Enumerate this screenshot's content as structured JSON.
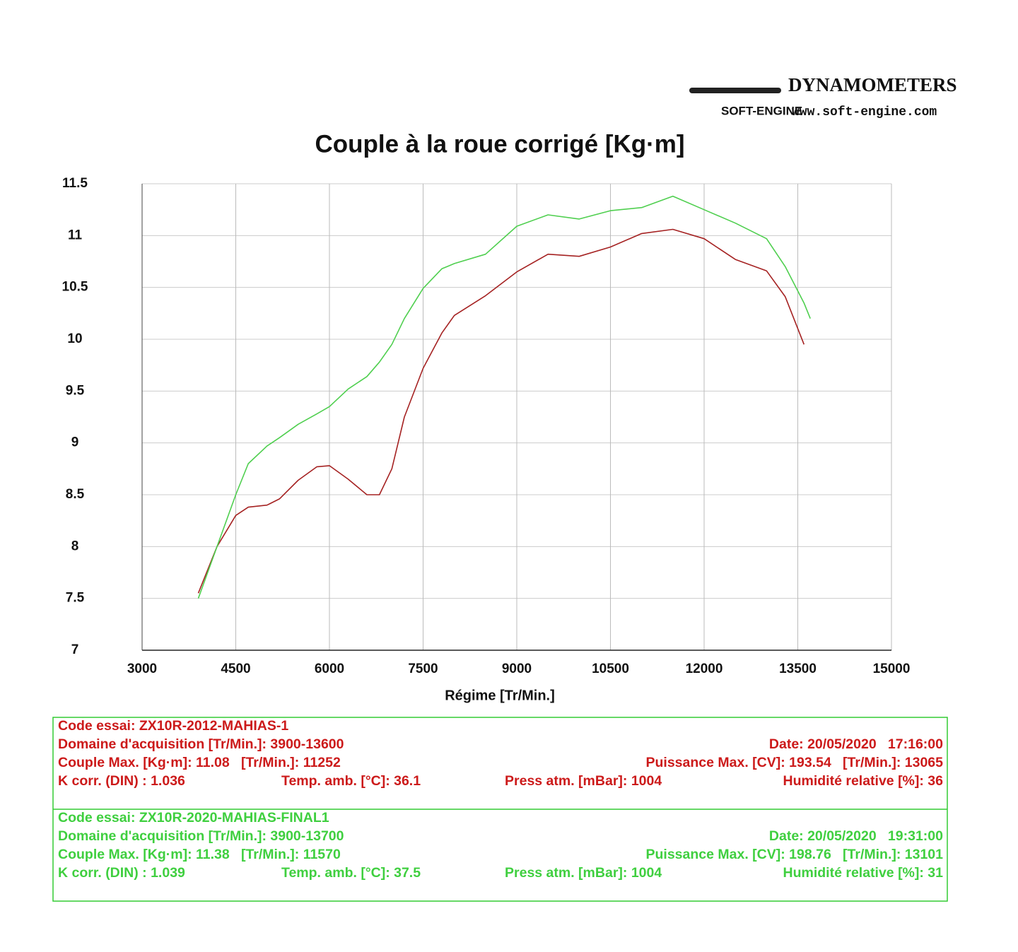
{
  "header": {
    "brand": "DYNAMOMETERS",
    "logo": "SOFT-ENGINE",
    "url": "www.soft-engine.com"
  },
  "chart_data": {
    "type": "line",
    "title": "Couple à la roue corrigé [Kg·m]",
    "x_label": "Régime [Tr/Min.]",
    "x": [
      3900,
      4200,
      4500,
      4700,
      5000,
      5200,
      5500,
      5800,
      6000,
      6300,
      6600,
      6800,
      7000,
      7200,
      7500,
      7800,
      8000,
      8500,
      9000,
      9500,
      10000,
      10500,
      11000,
      11500,
      12000,
      12500,
      13000,
      13300,
      13600,
      13700
    ],
    "series": [
      {
        "color": "#a52222",
        "values": [
          7.55,
          8.0,
          8.3,
          8.38,
          8.4,
          8.46,
          8.64,
          8.77,
          8.78,
          8.65,
          8.5,
          8.5,
          8.75,
          9.25,
          9.72,
          10.06,
          10.23,
          10.42,
          10.65,
          10.82,
          10.8,
          10.89,
          11.02,
          11.06,
          10.97,
          10.77,
          10.66,
          10.41,
          9.95,
          null
        ]
      },
      {
        "color": "#4fcf4f",
        "values": [
          7.5,
          8.0,
          8.5,
          8.8,
          8.97,
          9.05,
          9.18,
          9.28,
          9.35,
          9.52,
          9.64,
          9.78,
          9.95,
          10.2,
          10.49,
          10.68,
          10.73,
          10.82,
          11.09,
          11.2,
          11.16,
          11.24,
          11.27,
          11.38,
          11.25,
          11.12,
          10.97,
          10.7,
          10.35,
          10.2
        ]
      }
    ],
    "xlim": [
      3000,
      15000
    ],
    "xticks": [
      3000,
      4500,
      6000,
      7500,
      9000,
      10500,
      12000,
      13500,
      15000
    ],
    "ylim": [
      7,
      11.5
    ],
    "yticks": [
      7,
      7.5,
      8,
      8.5,
      9,
      9.5,
      10,
      10.5,
      11,
      11.5
    ],
    "grid": true
  },
  "info": [
    {
      "color": "#cc1a1a",
      "code": "Code essai: ZX10R-2012-MAHIAS-1",
      "domain": "Domaine d'acquisition [Tr/Min.]: 3900-13600",
      "date": "Date: 20/05/2020   17:16:00",
      "couple": "Couple Max. [Kg·m]: 11.08   [Tr/Min.]: 11252",
      "puissance": "Puissance Max. [CV]: 193.54   [Tr/Min.]: 13065",
      "kcorr": "K corr. (DIN) : 1.036",
      "temp": "Temp. amb. [°C]: 36.1",
      "press": "Press atm. [mBar]: 1004",
      "humidity": "Humidité relative [%]: 36"
    },
    {
      "color": "#3fcf3f",
      "code": "Code essai: ZX10R-2020-MAHIAS-FINAL1",
      "domain": "Domaine d'acquisition [Tr/Min.]: 3900-13700",
      "date": "Date: 20/05/2020   19:31:00",
      "couple": "Couple Max. [Kg·m]: 11.38   [Tr/Min.]: 11570",
      "puissance": "Puissance Max. [CV]: 198.76   [Tr/Min.]: 13101",
      "kcorr": "K corr. (DIN) : 1.039",
      "temp": "Temp. amb. [°C]: 37.5",
      "press": "Press atm. [mBar]: 1004",
      "humidity": "Humidité relative [%]: 31"
    }
  ]
}
